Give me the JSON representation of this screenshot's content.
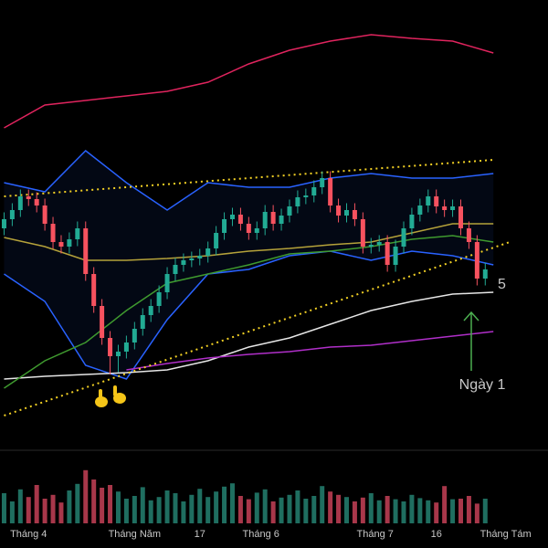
{
  "chart_data": {
    "type": "candlestick",
    "up_color": "#22ab94",
    "down_color": "#f7525f",
    "volume_up_color": "#1f6e60",
    "volume_down_color": "#a8374a",
    "ylim": [
      0,
      100
    ],
    "xlim": [
      -0.5,
      63
    ],
    "xticks": [
      {
        "value": 3,
        "label": "Tháng 4"
      },
      {
        "value": 16,
        "label": "Tháng Năm"
      },
      {
        "value": 24,
        "label": "17"
      },
      {
        "value": 31.5,
        "label": "Tháng 6"
      },
      {
        "value": 45.5,
        "label": "Tháng 7"
      },
      {
        "value": 53,
        "label": "16"
      },
      {
        "value": 61.5,
        "label": "Tháng Tám"
      }
    ],
    "open": [
      50,
      52,
      54,
      57,
      56.4,
      55,
      51,
      47,
      46,
      47.6,
      50,
      40,
      33,
      26,
      22,
      23,
      25,
      28,
      31,
      33,
      36,
      40,
      42,
      43,
      43.4,
      44,
      45.6,
      49,
      52,
      53,
      51,
      49,
      50,
      53.6,
      51,
      52.8,
      54.8,
      56.8,
      57.2,
      59,
      61,
      55,
      52.8,
      54,
      52,
      46,
      46.4,
      47,
      42,
      46,
      50,
      53,
      55,
      57,
      54.8,
      54,
      54.8,
      50,
      47,
      39
    ],
    "high": [
      53.5,
      55.5,
      58.5,
      58.5,
      57.9,
      56.5,
      52.5,
      48.5,
      49.1,
      51.5,
      51.5,
      41.5,
      34.5,
      27.5,
      24.5,
      26.5,
      29.5,
      32.5,
      34.5,
      37.5,
      41.5,
      43.5,
      44.5,
      44.9,
      45.5,
      47.1,
      50.5,
      53.5,
      54.5,
      54.5,
      52.5,
      51.5,
      55.1,
      55.1,
      54.3,
      56.3,
      58.3,
      58.7,
      60.5,
      62.5,
      62.5,
      56.5,
      55.5,
      55.5,
      53.5,
      47.9,
      48.5,
      48.5,
      47.5,
      51.5,
      54.5,
      56.5,
      58.5,
      58.5,
      56.3,
      56.3,
      56.3,
      51.5,
      48.5,
      42.5
    ],
    "low": [
      48.5,
      50.5,
      52.5,
      54.9,
      53.5,
      49.5,
      45.5,
      44.5,
      44.5,
      46.1,
      38.5,
      31.5,
      24.5,
      18,
      18.5,
      21.5,
      23.5,
      26.5,
      29.5,
      31.5,
      34.5,
      38.5,
      40.5,
      41.5,
      41.9,
      42.5,
      44.1,
      47.5,
      50.5,
      49.5,
      47.5,
      47.5,
      48.5,
      49.5,
      49.5,
      51.3,
      53.3,
      55.3,
      55.7,
      57.5,
      53.5,
      51.3,
      51.3,
      50.5,
      44.5,
      44.5,
      44.9,
      40.5,
      40.5,
      44.5,
      48.5,
      51.5,
      53.5,
      53.3,
      52.5,
      52.5,
      48.5,
      45.5,
      37.5,
      37.5
    ],
    "close": [
      52,
      54,
      57,
      56.4,
      55,
      51,
      47,
      46,
      47.6,
      50,
      40,
      33,
      26,
      22,
      23,
      25,
      28,
      31,
      33,
      36,
      40,
      42,
      43,
      43.4,
      44,
      45.6,
      49,
      52,
      53,
      51,
      49,
      50,
      53.6,
      51,
      52.8,
      54.8,
      56.8,
      57.2,
      59,
      61,
      55,
      52.8,
      54,
      52,
      46,
      46.4,
      47,
      42,
      46,
      50,
      53,
      55,
      57,
      54.8,
      54,
      54.8,
      50,
      47,
      39,
      41
    ],
    "volume_ylim": [
      0,
      100
    ],
    "volume": [
      55,
      40,
      62,
      48,
      70,
      45,
      52,
      38,
      60,
      72,
      97,
      80,
      65,
      70,
      58,
      45,
      50,
      66,
      42,
      48,
      60,
      55,
      40,
      52,
      63,
      48,
      58,
      67,
      73,
      50,
      44,
      56,
      62,
      40,
      47,
      52,
      60,
      45,
      50,
      68,
      58,
      52,
      48,
      40,
      47,
      55,
      42,
      50,
      44,
      40,
      52,
      46,
      42,
      38,
      68,
      44,
      45,
      50,
      36,
      45
    ],
    "line_x": [
      0,
      5,
      10,
      15,
      20,
      25,
      30,
      35,
      40,
      45,
      50,
      55,
      60
    ],
    "lines": [
      {
        "color": "#e0245e",
        "values": [
          72,
          77,
          78,
          79,
          80,
          82,
          86,
          89,
          91,
          92.4,
          91.6,
          91,
          88.4
        ]
      },
      {
        "color": "#2962ff",
        "values": [
          60,
          58,
          67,
          60,
          54,
          60,
          59,
          59,
          61,
          62,
          61,
          61,
          62
        ]
      },
      {
        "color": "#2962ff",
        "values": [
          40,
          34,
          20,
          17,
          30,
          40,
          41,
          44,
          45,
          43,
          45,
          44,
          42
        ]
      },
      {
        "color": "#e6e6e6",
        "values": [
          17,
          17.6,
          18,
          18.4,
          19,
          21,
          24,
          26,
          29,
          32,
          34,
          35.6,
          36
        ]
      },
      {
        "color": "#b02fc9",
        "values": [
          null,
          null,
          null,
          19,
          20.4,
          21.6,
          22.4,
          23,
          24,
          24.4,
          25.4,
          26.4,
          27.4
        ]
      },
      {
        "color": "#3f9a2f",
        "values": [
          15,
          21,
          25,
          32,
          38,
          40,
          42,
          44.4,
          45,
          46,
          47.6,
          48.4,
          47
        ]
      },
      {
        "color": "#b5a23a",
        "values": [
          48,
          46,
          43,
          43,
          43.4,
          44,
          45,
          45.6,
          46.4,
          47,
          49,
          51,
          51
        ]
      }
    ],
    "trendlines": [
      {
        "color": "#f2d024",
        "x": [
          0,
          60
        ],
        "values": [
          57,
          65
        ]
      },
      {
        "color": "#f2d024",
        "x": [
          0,
          62
        ],
        "values": [
          9,
          47
        ]
      }
    ],
    "annotations": [
      {
        "text": "5",
        "color": "#4caf50"
      },
      {
        "text": "Ngày 1",
        "color": "#4caf50"
      }
    ]
  }
}
